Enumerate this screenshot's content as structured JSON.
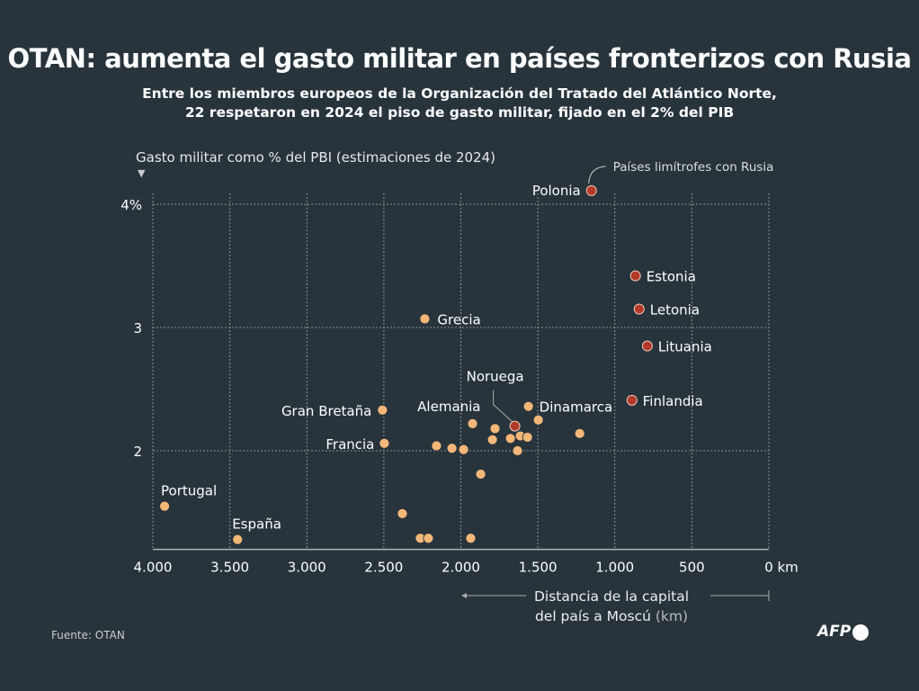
{
  "title": "OTAN: aumenta el gasto militar en países fronterizos con Rusia",
  "subtitle_lines": [
    "Entre los miembros europeos de la Organización del Tratado del Atlántico Norte,",
    "22 respetaron en 2024 el piso de gasto militar, fijado en el 2% del PIB"
  ],
  "source": "Fuente: OTAN",
  "logo": "AFP",
  "colors": {
    "background": "#28343b",
    "other_members": "#f4b77a",
    "border_countries": "#b23a2a"
  },
  "chart_data": {
    "type": "scatter",
    "ylabel": "Gasto militar como % del PBI (estimaciones de 2024)",
    "xlabel_lines": [
      "Distancia de la capital",
      "del país a Moscú",
      "(km)"
    ],
    "xlim": [
      4000,
      0
    ],
    "ylim": [
      1.2,
      4.1
    ],
    "x_reversed": true,
    "grid": true,
    "x_ticks": [
      {
        "v": 4000,
        "label": "4.000"
      },
      {
        "v": 3500,
        "label": "3.500"
      },
      {
        "v": 3000,
        "label": "3.000"
      },
      {
        "v": 2500,
        "label": "2.500"
      },
      {
        "v": 2000,
        "label": "2.000"
      },
      {
        "v": 1500,
        "label": "1.500"
      },
      {
        "v": 1000,
        "label": "1.000"
      },
      {
        "v": 500,
        "label": "500"
      },
      {
        "v": 0,
        "label": "0 km"
      }
    ],
    "y_ticks": [
      {
        "v": 4,
        "label": "4%"
      },
      {
        "v": 3,
        "label": "3"
      },
      {
        "v": 2,
        "label": "2"
      }
    ],
    "legend_annotation": "Países limítrofes con Rusia",
    "points": [
      {
        "label": "Polonia",
        "x": 1152,
        "y": 4.11,
        "border": true
      },
      {
        "label": "Estonia",
        "x": 866,
        "y": 3.42,
        "border": true
      },
      {
        "label": "Letonia",
        "x": 842,
        "y": 3.15,
        "border": true
      },
      {
        "label": "Lituania",
        "x": 789,
        "y": 2.85,
        "border": true
      },
      {
        "label": "Finlandia",
        "x": 889,
        "y": 2.41,
        "border": true
      },
      {
        "label": "Noruega",
        "x": 1649,
        "y": 2.2,
        "border": true
      },
      {
        "label": "Grecia",
        "x": 2234,
        "y": 3.07,
        "border": false
      },
      {
        "label": "Gran Bretaña",
        "x": 2509,
        "y": 2.33,
        "border": false
      },
      {
        "label": "Francia",
        "x": 2497,
        "y": 2.06,
        "border": false
      },
      {
        "label": "Portugal",
        "x": 3924,
        "y": 1.55,
        "border": false
      },
      {
        "label": "España",
        "x": 3450,
        "y": 1.28,
        "border": false
      },
      {
        "label": "Dinamarca",
        "x": 1561,
        "y": 2.36,
        "border": false
      },
      {
        "label": "Alemania",
        "x": 1924,
        "y": 2.22,
        "border": false
      },
      {
        "label": "",
        "x": 2158,
        "y": 2.04,
        "border": false
      },
      {
        "label": "",
        "x": 2058,
        "y": 2.02,
        "border": false
      },
      {
        "label": "",
        "x": 1982,
        "y": 2.01,
        "border": false
      },
      {
        "label": "",
        "x": 1778,
        "y": 2.18,
        "border": false
      },
      {
        "label": "",
        "x": 1795,
        "y": 2.09,
        "border": false
      },
      {
        "label": "",
        "x": 1678,
        "y": 2.1,
        "border": false
      },
      {
        "label": "",
        "x": 1614,
        "y": 2.12,
        "border": false
      },
      {
        "label": "",
        "x": 1567,
        "y": 2.11,
        "border": false
      },
      {
        "label": "",
        "x": 1632,
        "y": 2.0,
        "border": false
      },
      {
        "label": "",
        "x": 1497,
        "y": 2.25,
        "border": false
      },
      {
        "label": "",
        "x": 1228,
        "y": 2.14,
        "border": false
      },
      {
        "label": "",
        "x": 1871,
        "y": 1.81,
        "border": false
      },
      {
        "label": "",
        "x": 2380,
        "y": 1.49,
        "border": false
      },
      {
        "label": "",
        "x": 2263,
        "y": 1.29,
        "border": false
      },
      {
        "label": "",
        "x": 2211,
        "y": 1.29,
        "border": false
      },
      {
        "label": "",
        "x": 1936,
        "y": 1.29,
        "border": false
      }
    ]
  }
}
